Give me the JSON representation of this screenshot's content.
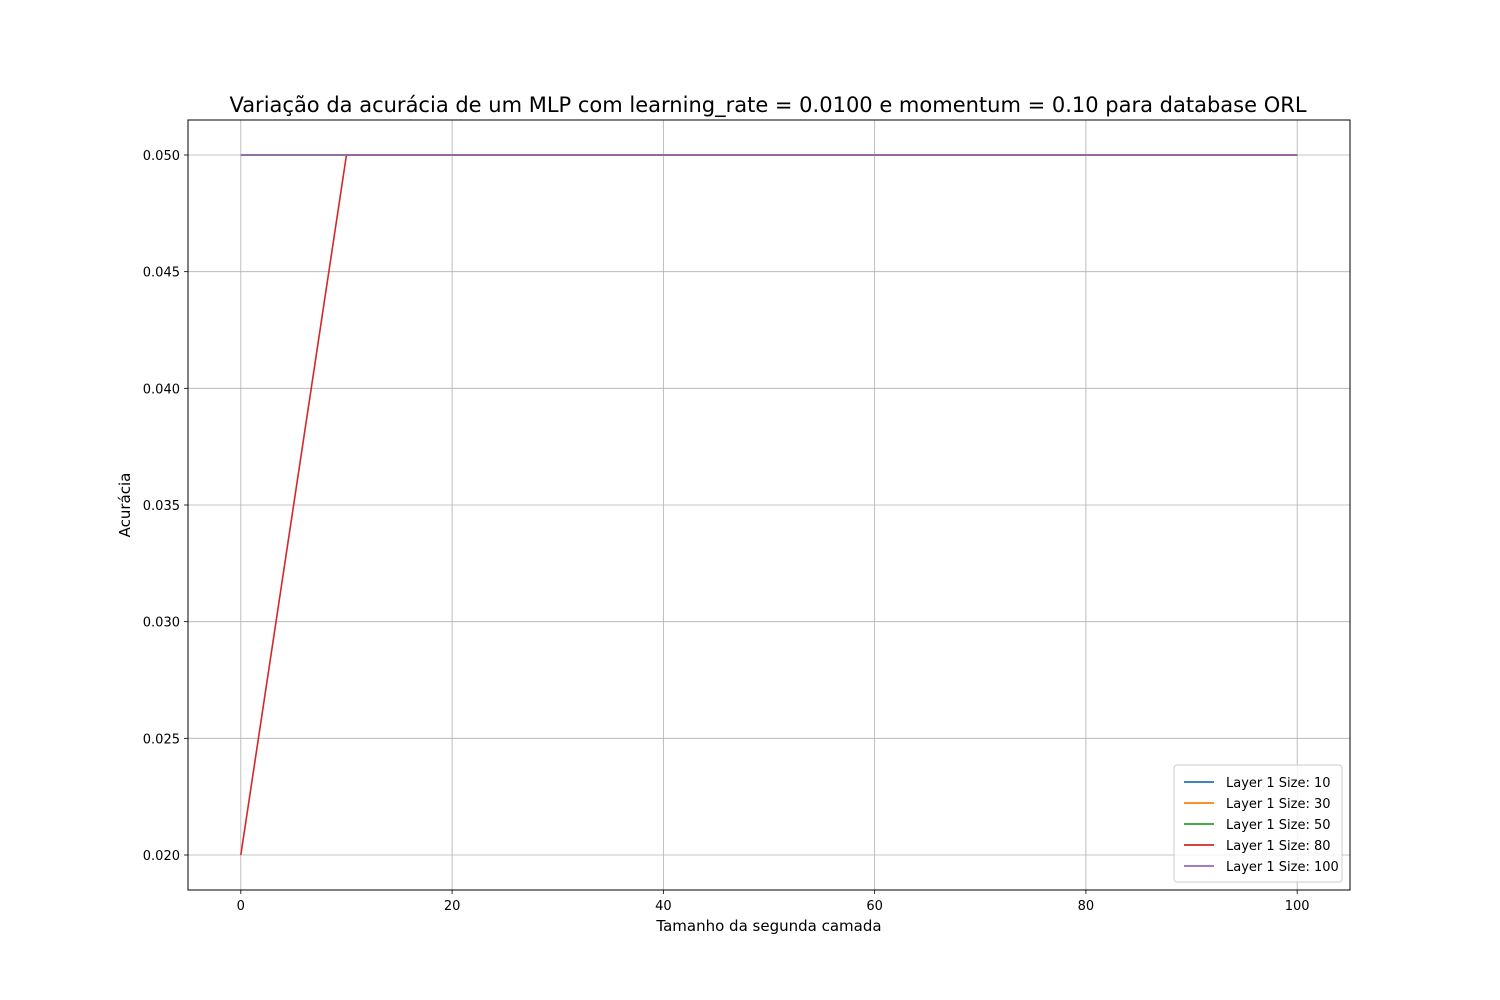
{
  "chart_data": {
    "type": "line",
    "title": "Variação da acurácia de um MLP com learning_rate = 0.0100 e momentum = 0.10 para database ORL",
    "xlabel": "Tamanho da segunda camada",
    "ylabel": "Acurácia",
    "xlim": [
      -5,
      105
    ],
    "ylim": [
      0.0185,
      0.0515
    ],
    "xticks": [
      0,
      20,
      40,
      60,
      80,
      100
    ],
    "xtick_labels": [
      "0",
      "20",
      "40",
      "60",
      "80",
      "100"
    ],
    "yticks": [
      0.02,
      0.025,
      0.03,
      0.035,
      0.04,
      0.045,
      0.05
    ],
    "ytick_labels": [
      "0.020",
      "0.025",
      "0.030",
      "0.035",
      "0.040",
      "0.045",
      "0.050"
    ],
    "grid": true,
    "legend_position": "lower-right",
    "x": [
      0,
      10,
      20,
      30,
      40,
      50,
      60,
      70,
      80,
      90,
      100
    ],
    "series": [
      {
        "name": "Layer 1 Size: 10",
        "color": "#1f77b4",
        "values": [
          0.05,
          0.05,
          0.05,
          0.05,
          0.05,
          0.05,
          0.05,
          0.05,
          0.05,
          0.05,
          0.05
        ]
      },
      {
        "name": "Layer 1 Size: 30",
        "color": "#ff7f0e",
        "values": [
          0.05,
          0.05,
          0.05,
          0.05,
          0.05,
          0.05,
          0.05,
          0.05,
          0.05,
          0.05,
          0.05
        ]
      },
      {
        "name": "Layer 1 Size: 50",
        "color": "#2ca02c",
        "values": [
          0.05,
          0.05,
          0.05,
          0.05,
          0.05,
          0.05,
          0.05,
          0.05,
          0.05,
          0.05,
          0.05
        ]
      },
      {
        "name": "Layer 1 Size: 80",
        "color": "#d62728",
        "values": [
          0.02,
          0.05,
          0.05,
          0.05,
          0.05,
          0.05,
          0.05,
          0.05,
          0.05,
          0.05,
          0.05
        ]
      },
      {
        "name": "Layer 1 Size: 100",
        "color": "#9467bd",
        "values": [
          0.05,
          0.05,
          0.05,
          0.05,
          0.05,
          0.05,
          0.05,
          0.05,
          0.05,
          0.05,
          0.05
        ]
      }
    ]
  }
}
